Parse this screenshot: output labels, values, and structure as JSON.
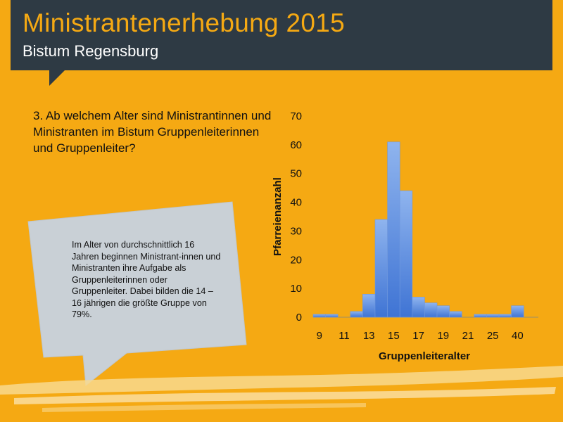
{
  "header": {
    "title": "Ministrantenerhebung 2015",
    "subtitle": "Bistum Regensburg"
  },
  "question": "3. Ab welchem Alter sind Ministrantinnen und Ministranten im Bistum Gruppenleiterinnen und Gruppenleiter?",
  "callout": "Im Alter von durchschnittlich 16 Jahren beginnen Ministrant-innen und Ministranten ihre Aufgabe als Gruppenleiterinnen oder Gruppenleiter. Dabei bilden die 14 – 16 jährigen die größte Gruppe von 79%.",
  "colors": {
    "background": "#F5A913",
    "header": "#2E3A44",
    "bar_top": "#8FB4EE",
    "bar_bottom": "#3F74D4",
    "callout": "#C9D0D6"
  },
  "chart_data": {
    "type": "bar",
    "categories": [
      "9",
      "10",
      "11",
      "12",
      "13",
      "14",
      "15",
      "16",
      "17",
      "18",
      "19",
      "20",
      "21",
      "22",
      "25",
      "30",
      "40"
    ],
    "values": [
      1,
      1,
      0,
      2,
      8,
      34,
      61,
      44,
      7,
      5,
      4,
      2,
      0,
      1,
      1,
      1,
      4
    ],
    "tick_labels": [
      "9",
      "11",
      "13",
      "15",
      "17",
      "19",
      "21",
      "25",
      "40"
    ],
    "xlabel": "Gruppenleiteralter",
    "ylabel": "Pfarreienanzahl",
    "ylim": [
      0,
      70
    ],
    "yticks": [
      0,
      10,
      20,
      30,
      40,
      50,
      60,
      70
    ],
    "grid": false
  }
}
